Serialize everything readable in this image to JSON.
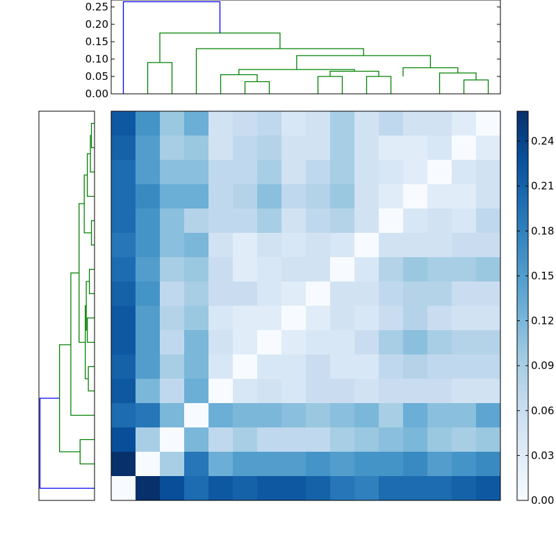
{
  "chart_data": [
    {
      "type": "heatmap",
      "n_rows": 16,
      "n_cols": 16,
      "values": [
        [
          0.22,
          0.16,
          0.1,
          0.13,
          0.05,
          0.06,
          0.07,
          0.04,
          0.05,
          0.09,
          0.05,
          0.07,
          0.05,
          0.05,
          0.03,
          0.0
        ],
        [
          0.21,
          0.15,
          0.09,
          0.1,
          0.05,
          0.07,
          0.08,
          0.05,
          0.05,
          0.09,
          0.05,
          0.03,
          0.03,
          0.04,
          0.0,
          0.03
        ],
        [
          0.2,
          0.15,
          0.11,
          0.11,
          0.07,
          0.07,
          0.09,
          0.05,
          0.07,
          0.09,
          0.05,
          0.04,
          0.03,
          0.0,
          0.04,
          0.05
        ],
        [
          0.2,
          0.17,
          0.13,
          0.13,
          0.07,
          0.08,
          0.11,
          0.07,
          0.08,
          0.1,
          0.05,
          0.03,
          0.0,
          0.03,
          0.03,
          0.05
        ],
        [
          0.2,
          0.16,
          0.11,
          0.08,
          0.07,
          0.07,
          0.09,
          0.05,
          0.07,
          0.08,
          0.05,
          0.0,
          0.04,
          0.05,
          0.04,
          0.07
        ],
        [
          0.19,
          0.16,
          0.11,
          0.12,
          0.05,
          0.03,
          0.05,
          0.04,
          0.05,
          0.04,
          0.0,
          0.05,
          0.05,
          0.05,
          0.06,
          0.06
        ],
        [
          0.2,
          0.15,
          0.09,
          0.1,
          0.06,
          0.03,
          0.04,
          0.05,
          0.05,
          0.0,
          0.04,
          0.08,
          0.1,
          0.09,
          0.09,
          0.1
        ],
        [
          0.21,
          0.16,
          0.07,
          0.09,
          0.06,
          0.06,
          0.04,
          0.03,
          0.0,
          0.05,
          0.05,
          0.07,
          0.08,
          0.08,
          0.06,
          0.06
        ],
        [
          0.22,
          0.15,
          0.08,
          0.1,
          0.04,
          0.03,
          0.03,
          0.0,
          0.03,
          0.05,
          0.04,
          0.06,
          0.08,
          0.06,
          0.05,
          0.05
        ],
        [
          0.22,
          0.15,
          0.07,
          0.12,
          0.05,
          0.03,
          0.0,
          0.03,
          0.04,
          0.04,
          0.06,
          0.09,
          0.11,
          0.09,
          0.08,
          0.08
        ],
        [
          0.21,
          0.15,
          0.09,
          0.12,
          0.04,
          0.0,
          0.04,
          0.04,
          0.06,
          0.04,
          0.04,
          0.07,
          0.08,
          0.07,
          0.07,
          0.07
        ],
        [
          0.22,
          0.12,
          0.07,
          0.13,
          0.0,
          0.04,
          0.05,
          0.04,
          0.06,
          0.06,
          0.05,
          0.06,
          0.06,
          0.06,
          0.05,
          0.05
        ],
        [
          0.2,
          0.19,
          0.12,
          0.0,
          0.13,
          0.12,
          0.12,
          0.11,
          0.1,
          0.11,
          0.12,
          0.09,
          0.13,
          0.11,
          0.11,
          0.14
        ],
        [
          0.23,
          0.09,
          0.0,
          0.12,
          0.07,
          0.09,
          0.07,
          0.07,
          0.07,
          0.09,
          0.1,
          0.11,
          0.12,
          0.1,
          0.09,
          0.1
        ],
        [
          0.26,
          0.0,
          0.09,
          0.19,
          0.13,
          0.15,
          0.15,
          0.15,
          0.16,
          0.15,
          0.16,
          0.16,
          0.17,
          0.15,
          0.16,
          0.17
        ],
        [
          0.0,
          0.26,
          0.23,
          0.2,
          0.22,
          0.21,
          0.22,
          0.22,
          0.21,
          0.19,
          0.18,
          0.2,
          0.2,
          0.2,
          0.21,
          0.22
        ]
      ],
      "colormap": "Blues",
      "vmin": 0.0,
      "vmax": 0.26,
      "colorbar_ticks": [
        "0.00",
        "0.03",
        "0.06",
        "0.09",
        "0.12",
        "0.15",
        "0.18",
        "0.21",
        "0.24"
      ]
    },
    {
      "type": "dendrogram",
      "orientation": "top",
      "ylim": [
        0,
        0.27
      ],
      "ytick_labels": [
        "0.00",
        "0.05",
        "0.10",
        "0.15",
        "0.20",
        "0.25"
      ],
      "leaf_positions": [
        0.5,
        1.5,
        2.5,
        3.5,
        4.5,
        5.5,
        6.5,
        7.5,
        8.5,
        9.5,
        10.5,
        11.5,
        12.5,
        13.5,
        14.5,
        15.5
      ],
      "links": [
        {
          "left": 5.5,
          "right": 6.5,
          "h_left": 0.0,
          "h_right": 0.0,
          "height": 0.035,
          "color": "#008000"
        },
        {
          "left": 4.5,
          "right": 6.0,
          "h_left": 0.0,
          "h_right": 0.035,
          "height": 0.055,
          "color": "#008000"
        },
        {
          "left": 8.5,
          "right": 9.5,
          "h_left": 0.0,
          "h_right": 0.0,
          "height": 0.05,
          "color": "#008000"
        },
        {
          "left": 10.5,
          "right": 11.5,
          "h_left": 0.0,
          "h_right": 0.0,
          "height": 0.05,
          "color": "#008000"
        },
        {
          "left": 14.5,
          "right": 15.5,
          "h_left": 0.0,
          "h_right": 0.0,
          "height": 0.04,
          "color": "#008000"
        },
        {
          "left": 13.5,
          "right": 15.0,
          "h_left": 0.0,
          "h_right": 0.04,
          "height": 0.06,
          "color": "#008000"
        },
        {
          "left": 9.0,
          "right": 11.0,
          "h_left": 0.05,
          "h_right": 0.05,
          "height": 0.065,
          "color": "#008000"
        },
        {
          "left": 5.25,
          "right": 10.0,
          "h_left": 0.055,
          "h_right": 0.065,
          "height": 0.07,
          "color": "#008000"
        },
        {
          "left": 12.0,
          "right": 14.25,
          "h_left": 0.05,
          "h_right": 0.06,
          "height": 0.075,
          "color": "#008000"
        },
        {
          "left": 7.625,
          "right": 13.125,
          "h_left": 0.07,
          "h_right": 0.075,
          "height": 0.11,
          "color": "#008000"
        },
        {
          "left": 3.5,
          "right": 10.375,
          "h_left": 0.0,
          "h_right": 0.11,
          "height": 0.13,
          "color": "#008000"
        },
        {
          "left": 1.5,
          "right": 2.5,
          "h_left": 0.0,
          "h_right": 0.0,
          "height": 0.09,
          "color": "#008000"
        },
        {
          "left": 2.0,
          "right": 6.94,
          "h_left": 0.09,
          "h_right": 0.13,
          "height": 0.175,
          "color": "#008000"
        },
        {
          "left": 0.5,
          "right": 4.47,
          "h_left": 0.0,
          "h_right": 0.175,
          "height": 0.265,
          "color": "#0000ff"
        }
      ]
    },
    {
      "type": "dendrogram",
      "orientation": "left",
      "leaf_positions": [
        0.5,
        1.5,
        2.5,
        3.5,
        4.5,
        5.5,
        6.5,
        7.5,
        8.5,
        9.5,
        10.5,
        11.5,
        12.5,
        13.5,
        14.5,
        15.5
      ],
      "links": [
        {
          "left": 0.5,
          "right": 1.5,
          "h_left": 0.0,
          "h_right": 0.0,
          "height": 0.015,
          "color": "#008000"
        },
        {
          "left": 1.0,
          "right": 2.5,
          "h_left": 0.015,
          "h_right": 0.0,
          "height": 0.02,
          "color": "#008000"
        },
        {
          "left": 1.75,
          "right": 3.5,
          "h_left": 0.02,
          "h_right": 0.0,
          "height": 0.035,
          "color": "#008000"
        },
        {
          "left": 4.5,
          "right": 5.5,
          "h_left": 0.0,
          "h_right": 0.0,
          "height": 0.015,
          "color": "#008000"
        },
        {
          "left": 2.625,
          "right": 5.0,
          "h_left": 0.035,
          "h_right": 0.015,
          "height": 0.05,
          "color": "#008000"
        },
        {
          "left": 6.5,
          "right": 7.5,
          "h_left": 0.0,
          "h_right": 0.0,
          "height": 0.025,
          "color": "#008000"
        },
        {
          "left": 8.5,
          "right": 9.5,
          "h_left": 0.0,
          "h_right": 0.0,
          "height": 0.035,
          "color": "#008000"
        },
        {
          "left": 7.0,
          "right": 9.0,
          "h_left": 0.025,
          "h_right": 0.035,
          "height": 0.04,
          "color": "#008000"
        },
        {
          "left": 10.5,
          "right": 11.5,
          "h_left": 0.0,
          "h_right": 0.0,
          "height": 0.03,
          "color": "#008000"
        },
        {
          "left": 8.0,
          "right": 11.0,
          "h_left": 0.04,
          "h_right": 0.03,
          "height": 0.045,
          "color": "#008000"
        },
        {
          "left": 3.8,
          "right": 9.5,
          "h_left": 0.05,
          "h_right": 0.045,
          "height": 0.075,
          "color": "#008000"
        },
        {
          "left": 6.65,
          "right": 12.5,
          "h_left": 0.075,
          "h_right": 0.0,
          "height": 0.115,
          "color": "#008000"
        },
        {
          "left": 13.5,
          "right": 14.5,
          "h_left": 0.0,
          "h_right": 0.0,
          "height": 0.07,
          "color": "#008000"
        },
        {
          "left": 9.6,
          "right": 14.0,
          "h_left": 0.115,
          "h_right": 0.07,
          "height": 0.17,
          "color": "#008000"
        },
        {
          "left": 11.8,
          "right": 15.5,
          "h_left": 0.17,
          "h_right": 0.0,
          "height": 0.265,
          "color": "#0000ff"
        }
      ]
    }
  ]
}
